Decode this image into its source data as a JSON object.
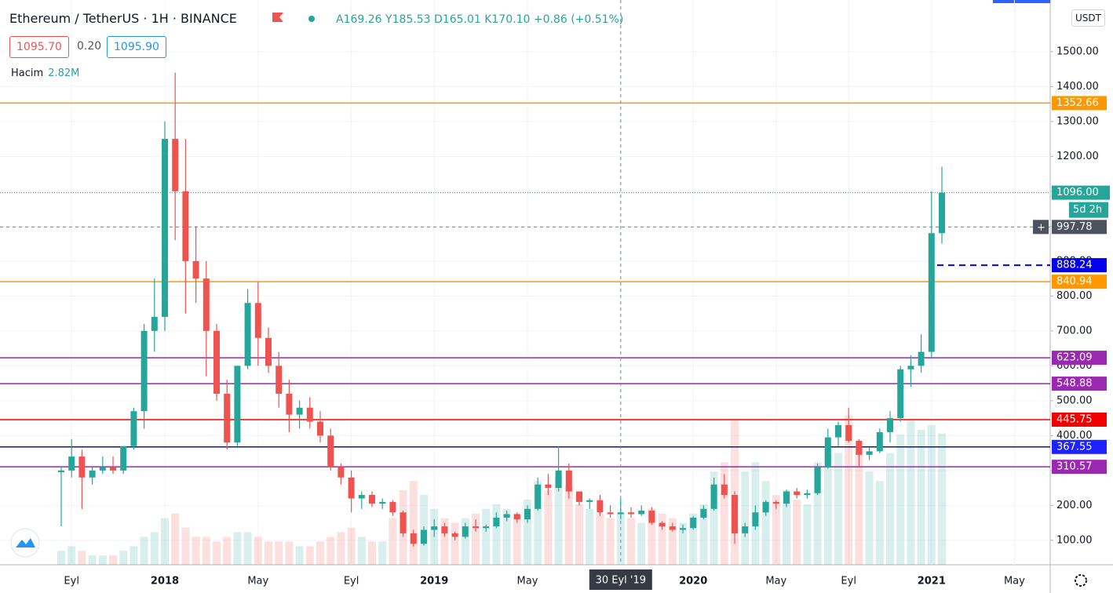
{
  "header": {
    "symbol": "Ethereum / TetherUS · 1H · BINANCE",
    "ohlc_text": "A169.26 Y185.53 D165.01 K170.10 +0.86 (+0.51%)",
    "bid": "1095.70",
    "spread": "0.20",
    "ask": "1095.90",
    "volume_label": "Hacim",
    "volume_value": "2.82M",
    "currency": "USDT"
  },
  "chart_data": {
    "type": "candlestick",
    "up_color": "#26a69a",
    "down_color": "#ef5350",
    "categories": [
      null,
      "Eyl",
      null,
      null,
      null,
      null,
      null,
      null,
      null,
      null,
      "2018",
      null,
      null,
      null,
      null,
      null,
      null,
      null,
      null,
      "May",
      null,
      null,
      null,
      null,
      null,
      null,
      null,
      null,
      "Eyl",
      null,
      null,
      null,
      null,
      null,
      null,
      null,
      "2019",
      null,
      null,
      null,
      null,
      null,
      null,
      null,
      null,
      "May",
      null,
      null,
      null,
      null,
      null,
      null,
      null,
      null,
      null,
      null,
      null,
      null,
      null,
      null,
      null,
      "2020",
      null,
      null,
      null,
      null,
      null,
      null,
      null,
      "May",
      null,
      null,
      null,
      null,
      null,
      null,
      "Eyl",
      null,
      null,
      null,
      null,
      null,
      null,
      null,
      "2021",
      null,
      null,
      null,
      null,
      null,
      null,
      null,
      "May"
    ],
    "ohlc": [
      [
        295,
        310,
        140,
        300
      ],
      [
        300,
        390,
        280,
        340
      ],
      [
        340,
        360,
        190,
        280
      ],
      [
        280,
        310,
        260,
        300
      ],
      [
        300,
        340,
        290,
        310
      ],
      [
        310,
        340,
        290,
        300
      ],
      [
        300,
        370,
        290,
        370
      ],
      [
        370,
        480,
        360,
        470
      ],
      [
        470,
        720,
        420,
        700
      ],
      [
        700,
        850,
        640,
        740
      ],
      [
        740,
        1300,
        700,
        1250
      ],
      [
        1250,
        1440,
        960,
        1100
      ],
      [
        1100,
        1250,
        750,
        900
      ],
      [
        900,
        1000,
        780,
        850
      ],
      [
        850,
        900,
        570,
        700
      ],
      [
        700,
        720,
        500,
        520
      ],
      [
        520,
        560,
        360,
        380
      ],
      [
        380,
        600,
        370,
        600
      ],
      [
        600,
        820,
        590,
        780
      ],
      [
        780,
        840,
        600,
        680
      ],
      [
        680,
        710,
        580,
        600
      ],
      [
        600,
        640,
        480,
        520
      ],
      [
        520,
        560,
        410,
        460
      ],
      [
        460,
        500,
        420,
        480
      ],
      [
        480,
        510,
        420,
        440
      ],
      [
        440,
        470,
        380,
        400
      ],
      [
        400,
        420,
        300,
        310
      ],
      [
        310,
        320,
        260,
        280
      ],
      [
        280,
        300,
        180,
        220
      ],
      [
        220,
        240,
        190,
        230
      ],
      [
        230,
        240,
        195,
        205
      ],
      [
        205,
        220,
        190,
        210
      ],
      [
        210,
        215,
        170,
        180
      ],
      [
        180,
        185,
        110,
        120
      ],
      [
        120,
        130,
        82,
        90
      ],
      [
        90,
        140,
        85,
        130
      ],
      [
        130,
        160,
        110,
        140
      ],
      [
        140,
        150,
        110,
        120
      ],
      [
        120,
        125,
        100,
        110
      ],
      [
        110,
        150,
        105,
        140
      ],
      [
        140,
        160,
        125,
        135
      ],
      [
        135,
        145,
        125,
        140
      ],
      [
        140,
        180,
        135,
        165
      ],
      [
        165,
        185,
        155,
        175
      ],
      [
        175,
        180,
        150,
        160
      ],
      [
        160,
        200,
        150,
        190
      ],
      [
        190,
        280,
        185,
        260
      ],
      [
        260,
        290,
        230,
        250
      ],
      [
        250,
        370,
        240,
        300
      ],
      [
        300,
        320,
        220,
        240
      ],
      [
        240,
        240,
        200,
        210
      ],
      [
        210,
        220,
        190,
        215
      ],
      [
        215,
        230,
        170,
        180
      ],
      [
        180,
        200,
        165,
        175
      ],
      [
        175,
        220,
        160,
        180
      ],
      [
        180,
        195,
        165,
        175
      ],
      [
        175,
        200,
        170,
        185
      ],
      [
        185,
        195,
        145,
        150
      ],
      [
        150,
        155,
        130,
        140
      ],
      [
        140,
        150,
        125,
        130
      ],
      [
        130,
        145,
        120,
        135
      ],
      [
        135,
        170,
        130,
        165
      ],
      [
        165,
        200,
        160,
        190
      ],
      [
        190,
        280,
        185,
        260
      ],
      [
        260,
        290,
        220,
        230
      ],
      [
        230,
        240,
        90,
        120
      ],
      [
        120,
        150,
        110,
        140
      ],
      [
        140,
        200,
        130,
        180
      ],
      [
        180,
        215,
        170,
        210
      ],
      [
        210,
        215,
        190,
        205
      ],
      [
        205,
        245,
        195,
        240
      ],
      [
        240,
        250,
        220,
        230
      ],
      [
        230,
        245,
        220,
        235
      ],
      [
        235,
        320,
        230,
        310
      ],
      [
        310,
        420,
        305,
        395
      ],
      [
        395,
        440,
        370,
        430
      ],
      [
        430,
        480,
        380,
        385
      ],
      [
        385,
        390,
        310,
        345
      ],
      [
        345,
        365,
        330,
        355
      ],
      [
        355,
        420,
        350,
        410
      ],
      [
        410,
        470,
        380,
        450
      ],
      [
        450,
        600,
        440,
        590
      ],
      [
        590,
        630,
        540,
        600
      ],
      [
        600,
        690,
        580,
        640
      ],
      [
        640,
        1100,
        620,
        980
      ],
      [
        980,
        1170,
        950,
        1096
      ],
      null,
      null,
      null,
      null,
      null,
      null,
      null
    ],
    "volume": [
      0.3,
      0.4,
      0.3,
      0.2,
      0.2,
      0.2,
      0.3,
      0.4,
      0.6,
      0.7,
      1.0,
      1.1,
      0.8,
      0.6,
      0.6,
      0.5,
      0.6,
      0.7,
      0.7,
      0.6,
      0.5,
      0.5,
      0.5,
      0.4,
      0.4,
      0.5,
      0.6,
      0.7,
      0.8,
      0.6,
      0.5,
      0.5,
      1.0,
      1.6,
      1.8,
      1.5,
      1.2,
      1.0,
      0.9,
      1.0,
      1.1,
      1.2,
      1.3,
      1.2,
      1.1,
      1.4,
      1.8,
      1.6,
      1.9,
      1.7,
      1.3,
      1.2,
      1.1,
      1.0,
      1.1,
      1.0,
      0.9,
      1.2,
      1.1,
      1.0,
      0.9,
      1.1,
      1.3,
      2.0,
      2.2,
      3.1,
      2.0,
      2.2,
      1.8,
      1.5,
      1.6,
      1.4,
      1.3,
      2.2,
      2.5,
      2.4,
      3.2,
      2.5,
      2.0,
      1.8,
      2.4,
      2.8,
      3.1,
      2.9,
      3.0,
      2.82,
      null,
      null,
      null,
      null,
      null,
      null,
      null
    ],
    "ylim": [
      30,
      1648
    ],
    "yticks": [
      {
        "value": 100,
        "label": "100.00"
      },
      {
        "value": 200,
        "label": "200.00"
      },
      {
        "value": 300,
        "label": "300.00"
      },
      {
        "value": 400,
        "label": "400.00"
      },
      {
        "value": 500,
        "label": "500.00"
      },
      {
        "value": 600,
        "label": "600.00"
      },
      {
        "value": 700,
        "label": "700.00"
      },
      {
        "value": 800,
        "label": "800.00"
      },
      {
        "value": 900,
        "label": "900.00"
      },
      {
        "value": 1000,
        "label": "1000.00"
      },
      {
        "value": 1100,
        "label": "1100.00"
      },
      {
        "value": 1200,
        "label": "1200.00"
      },
      {
        "value": 1300,
        "label": "1300.00"
      },
      {
        "value": 1400,
        "label": "1400.00"
      },
      {
        "value": 1500,
        "label": "1500.00"
      }
    ],
    "grid": true,
    "levels": [
      {
        "value": 1352.66,
        "color": "#ff9800"
      },
      {
        "value": 840.94,
        "color": "#ff9800"
      },
      {
        "value": 623.09,
        "color": "#9c27b0"
      },
      {
        "value": 548.88,
        "color": "#9c27b0"
      },
      {
        "value": 445.75,
        "color": "#f00000"
      },
      {
        "value": 367.55,
        "color": "#0d1b8a",
        "label_color": "#1e22ff"
      },
      {
        "value": 310.57,
        "color": "#9c27b0"
      }
    ],
    "order_line": {
      "value": 888.24,
      "color": "#0000ee"
    },
    "last_price": {
      "value": 1096,
      "label": "1096.00",
      "color": "#26a69a",
      "countdown": "5d 2h"
    },
    "crosshair": {
      "price": 997.78,
      "date_label": "30 Eyl '19"
    }
  }
}
